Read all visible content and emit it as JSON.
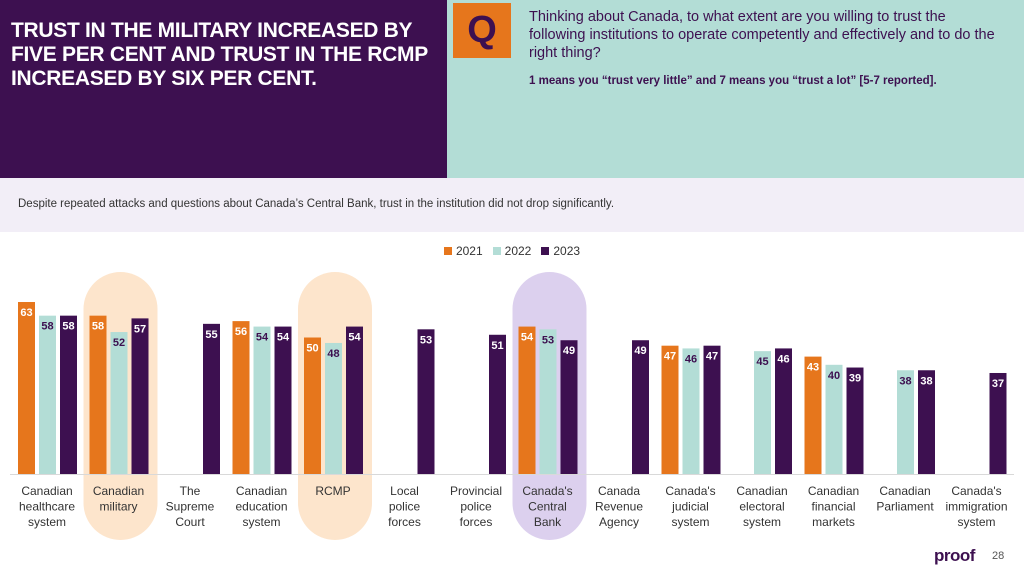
{
  "header": {
    "headline": "TRUST IN THE MILITARY INCREASED BY FIVE PER CENT AND TRUST IN THE RCMP INCREASED BY SIX PER CENT.",
    "q_label": "Q",
    "question": "Thinking about Canada, to what extent are you willing to trust the following institutions to operate competently and effectively and to do the right thing?",
    "scale_note": "1 means you “trust very little” and 7 means you “trust a lot” [5-7 reported]."
  },
  "note": "Despite repeated attacks and questions about Canada’s Central Bank, trust in the institution did not drop significantly.",
  "colors": {
    "purple": "#3d1050",
    "orange": "#e6761c",
    "teal": "#b3ddd6",
    "highlight_orange": "#fde5cc",
    "highlight_purple": "#dcd0ee"
  },
  "chart_data": {
    "type": "bar",
    "categories": [
      "Canadian healthcare system",
      "Canadian military",
      "The Supreme Court",
      "Canadian education system",
      "RCMP",
      "Local police forces",
      "Provincial police forces",
      "Canada's Central Bank",
      "Canada Revenue Agency",
      "Canada's judicial system",
      "Canadian electoral system",
      "Canadian financial markets",
      "Canadian Parliament",
      "Canada's immigration system"
    ],
    "category_lines": [
      [
        "Canadian",
        "healthcare",
        "system"
      ],
      [
        "Canadian",
        "military"
      ],
      [
        "The",
        "Supreme",
        "Court"
      ],
      [
        "Canadian",
        "education",
        "system"
      ],
      [
        "RCMP"
      ],
      [
        "Local",
        "police",
        "forces"
      ],
      [
        "Provincial",
        "police",
        "forces"
      ],
      [
        "Canada's",
        "Central",
        "Bank"
      ],
      [
        "Canada",
        "Revenue",
        "Agency"
      ],
      [
        "Canada's",
        "judicial",
        "system"
      ],
      [
        "Canadian",
        "electoral",
        "system"
      ],
      [
        "Canadian",
        "financial",
        "markets"
      ],
      [
        "Canadian",
        "Parliament"
      ],
      [
        "Canada's",
        "immigration",
        "system"
      ]
    ],
    "series": [
      {
        "name": "2021",
        "color": "#e6761c",
        "values": [
          63,
          58,
          null,
          56,
          50,
          null,
          null,
          54,
          null,
          47,
          null,
          43,
          null,
          null
        ]
      },
      {
        "name": "2022",
        "color": "#b3ddd6",
        "values": [
          58,
          52,
          null,
          54,
          48,
          null,
          null,
          53,
          null,
          46,
          45,
          40,
          38,
          null
        ]
      },
      {
        "name": "2023",
        "color": "#3d1050",
        "values": [
          58,
          57,
          55,
          54,
          54,
          53,
          51,
          49,
          49,
          47,
          46,
          39,
          38,
          37
        ]
      }
    ],
    "highlights": [
      {
        "category": "Canadian military",
        "color": "#fde5cc"
      },
      {
        "category": "RCMP",
        "color": "#fde5cc"
      },
      {
        "category": "Canada's Central Bank",
        "color": "#dcd0ee"
      }
    ],
    "ylim": [
      0,
      70
    ]
  },
  "footer": {
    "logo": "proof",
    "page": "28"
  }
}
